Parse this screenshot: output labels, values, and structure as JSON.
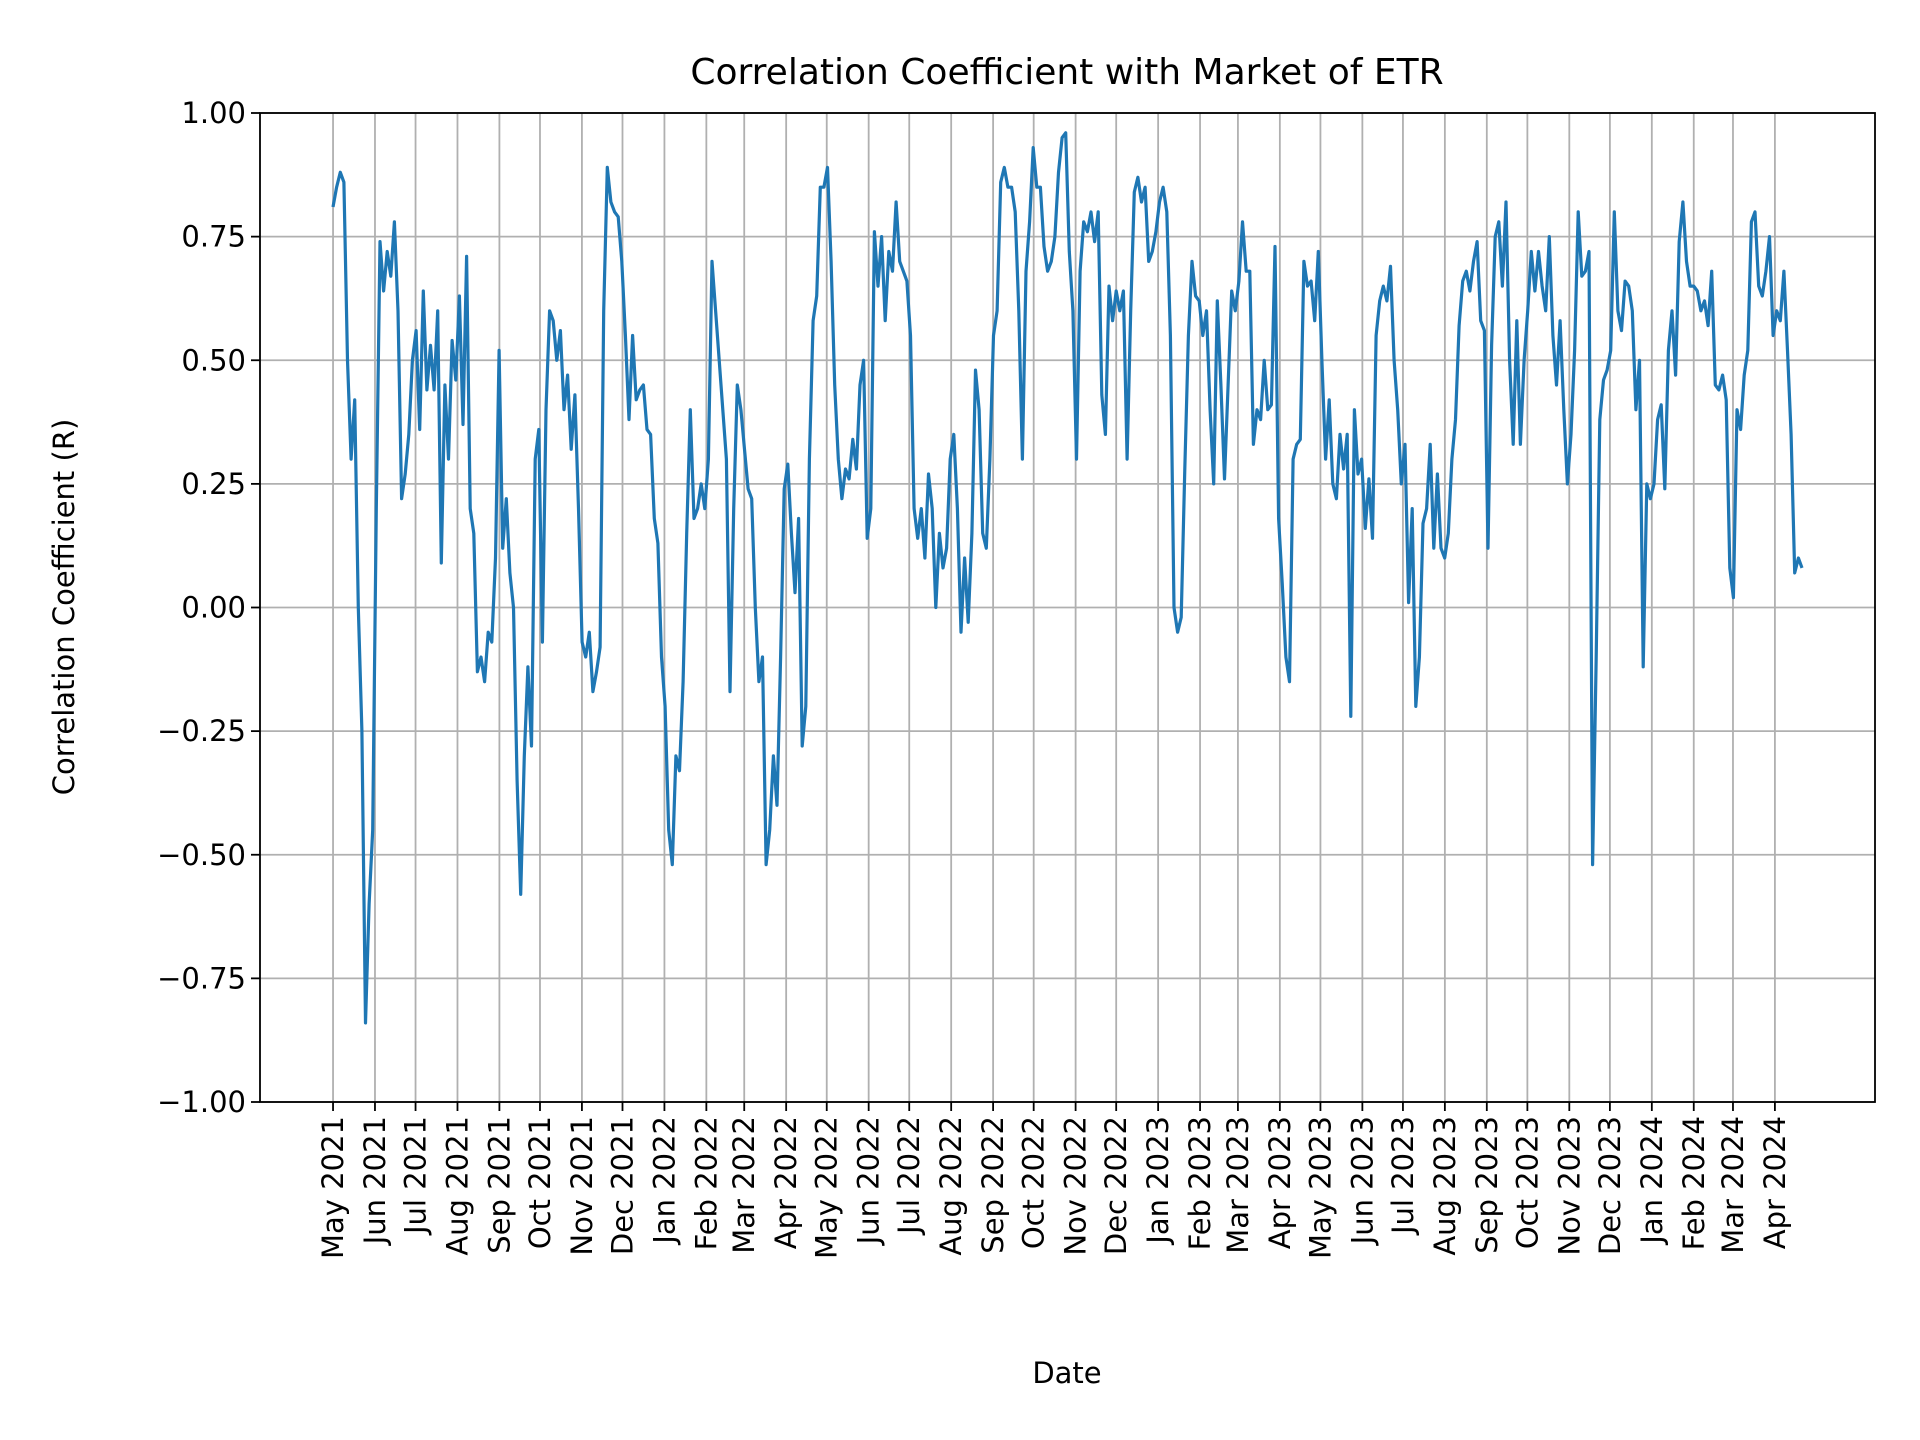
{
  "chart_data": {
    "type": "line",
    "title": "Correlation Coefficient with Market of ETR",
    "xlabel": "Date",
    "ylabel": "Correlation Coefficient (R)",
    "ylim": [
      -1.0,
      1.0
    ],
    "xlim": [
      "2021-03-08",
      "2024-06-14"
    ],
    "grid": true,
    "line_color": "#1f77b4",
    "grid_color": "#b0b0b0",
    "y_ticks": [
      {
        "value": 1.0,
        "label": "1.00"
      },
      {
        "value": 0.75,
        "label": "0.75"
      },
      {
        "value": 0.5,
        "label": "0.50"
      },
      {
        "value": 0.25,
        "label": "0.25"
      },
      {
        "value": 0.0,
        "label": "0.00"
      },
      {
        "value": -0.25,
        "label": "−0.25"
      },
      {
        "value": -0.5,
        "label": "−0.50"
      },
      {
        "value": -0.75,
        "label": "−0.75"
      },
      {
        "value": -1.0,
        "label": "−1.00"
      }
    ],
    "x_ticks": [
      {
        "date": "2021-05-01",
        "label": "May 2021"
      },
      {
        "date": "2021-06-01",
        "label": "Jun 2021"
      },
      {
        "date": "2021-07-01",
        "label": "Jul 2021"
      },
      {
        "date": "2021-08-01",
        "label": "Aug 2021"
      },
      {
        "date": "2021-09-01",
        "label": "Sep 2021"
      },
      {
        "date": "2021-10-01",
        "label": "Oct 2021"
      },
      {
        "date": "2021-11-01",
        "label": "Nov 2021"
      },
      {
        "date": "2021-12-01",
        "label": "Dec 2021"
      },
      {
        "date": "2022-01-01",
        "label": "Jan 2022"
      },
      {
        "date": "2022-02-01",
        "label": "Feb 2022"
      },
      {
        "date": "2022-03-01",
        "label": "Mar 2022"
      },
      {
        "date": "2022-04-01",
        "label": "Apr 2022"
      },
      {
        "date": "2022-05-01",
        "label": "May 2022"
      },
      {
        "date": "2022-06-01",
        "label": "Jun 2022"
      },
      {
        "date": "2022-07-01",
        "label": "Jul 2022"
      },
      {
        "date": "2022-08-01",
        "label": "Aug 2022"
      },
      {
        "date": "2022-09-01",
        "label": "Sep 2022"
      },
      {
        "date": "2022-10-01",
        "label": "Oct 2022"
      },
      {
        "date": "2022-11-01",
        "label": "Nov 2022"
      },
      {
        "date": "2022-12-01",
        "label": "Dec 2022"
      },
      {
        "date": "2023-01-01",
        "label": "Jan 2023"
      },
      {
        "date": "2023-02-01",
        "label": "Feb 2023"
      },
      {
        "date": "2023-03-01",
        "label": "Mar 2023"
      },
      {
        "date": "2023-04-01",
        "label": "Apr 2023"
      },
      {
        "date": "2023-05-01",
        "label": "May 2023"
      },
      {
        "date": "2023-06-01",
        "label": "Jun 2023"
      },
      {
        "date": "2023-07-01",
        "label": "Jul 2023"
      },
      {
        "date": "2023-08-01",
        "label": "Aug 2023"
      },
      {
        "date": "2023-09-01",
        "label": "Sep 2023"
      },
      {
        "date": "2023-10-01",
        "label": "Oct 2023"
      },
      {
        "date": "2023-11-01",
        "label": "Nov 2023"
      },
      {
        "date": "2023-12-01",
        "label": "Dec 2023"
      },
      {
        "date": "2024-01-01",
        "label": "Jan 2024"
      },
      {
        "date": "2024-02-01",
        "label": "Feb 2024"
      },
      {
        "date": "2024-03-01",
        "label": "Mar 2024"
      },
      {
        "date": "2024-04-01",
        "label": "Apr 2024"
      }
    ],
    "series": [
      {
        "first_date": "2021-05-01",
        "last_date": "2024-04-21",
        "values": [
          0.81,
          0.85,
          0.88,
          0.86,
          0.5,
          0.3,
          0.42,
          0.0,
          -0.25,
          -0.84,
          -0.6,
          -0.45,
          0.2,
          0.74,
          0.64,
          0.72,
          0.67,
          0.78,
          0.6,
          0.22,
          0.27,
          0.35,
          0.5,
          0.56,
          0.36,
          0.64,
          0.44,
          0.53,
          0.44,
          0.6,
          0.09,
          0.45,
          0.3,
          0.54,
          0.46,
          0.63,
          0.37,
          0.71,
          0.2,
          0.15,
          -0.13,
          -0.1,
          -0.15,
          -0.05,
          -0.07,
          0.1,
          0.52,
          0.12,
          0.22,
          0.07,
          0.0,
          -0.35,
          -0.58,
          -0.3,
          -0.12,
          -0.28,
          0.3,
          0.36,
          -0.07,
          0.4,
          0.6,
          0.58,
          0.5,
          0.56,
          0.4,
          0.47,
          0.32,
          0.43,
          0.2,
          -0.07,
          -0.1,
          -0.05,
          -0.17,
          -0.13,
          -0.08,
          0.6,
          0.89,
          0.82,
          0.8,
          0.79,
          0.7,
          0.55,
          0.38,
          0.55,
          0.42,
          0.44,
          0.45,
          0.36,
          0.35,
          0.18,
          0.13,
          -0.1,
          -0.2,
          -0.45,
          -0.52,
          -0.3,
          -0.33,
          -0.15,
          0.15,
          0.4,
          0.18,
          0.2,
          0.25,
          0.2,
          0.3,
          0.7,
          0.6,
          0.5,
          0.4,
          0.3,
          -0.17,
          0.2,
          0.45,
          0.4,
          0.32,
          0.24,
          0.22,
          0.0,
          -0.15,
          -0.1,
          -0.52,
          -0.45,
          -0.3,
          -0.4,
          -0.1,
          0.24,
          0.29,
          0.15,
          0.03,
          0.18,
          -0.28,
          -0.2,
          0.3,
          0.58,
          0.63,
          0.85,
          0.85,
          0.89,
          0.7,
          0.45,
          0.3,
          0.22,
          0.28,
          0.26,
          0.34,
          0.28,
          0.45,
          0.5,
          0.14,
          0.2,
          0.76,
          0.65,
          0.75,
          0.58,
          0.72,
          0.68,
          0.82,
          0.7,
          0.68,
          0.66,
          0.55,
          0.2,
          0.14,
          0.2,
          0.1,
          0.27,
          0.2,
          0.0,
          0.15,
          0.08,
          0.12,
          0.3,
          0.35,
          0.2,
          -0.05,
          0.1,
          -0.03,
          0.15,
          0.48,
          0.4,
          0.15,
          0.12,
          0.3,
          0.55,
          0.6,
          0.86,
          0.89,
          0.85,
          0.85,
          0.8,
          0.6,
          0.3,
          0.68,
          0.78,
          0.93,
          0.85,
          0.85,
          0.73,
          0.68,
          0.7,
          0.75,
          0.88,
          0.95,
          0.96,
          0.72,
          0.6,
          0.3,
          0.68,
          0.78,
          0.76,
          0.8,
          0.74,
          0.8,
          0.43,
          0.35,
          0.65,
          0.58,
          0.64,
          0.6,
          0.64,
          0.3,
          0.6,
          0.84,
          0.87,
          0.82,
          0.85,
          0.7,
          0.72,
          0.76,
          0.82,
          0.85,
          0.8,
          0.55,
          0.0,
          -0.05,
          -0.02,
          0.28,
          0.55,
          0.7,
          0.63,
          0.62,
          0.55,
          0.6,
          0.4,
          0.25,
          0.62,
          0.45,
          0.26,
          0.45,
          0.64,
          0.6,
          0.66,
          0.78,
          0.68,
          0.68,
          0.33,
          0.4,
          0.38,
          0.5,
          0.4,
          0.41,
          0.73,
          0.18,
          0.05,
          -0.1,
          -0.15,
          0.3,
          0.33,
          0.34,
          0.7,
          0.65,
          0.66,
          0.58,
          0.72,
          0.5,
          0.3,
          0.42,
          0.25,
          0.22,
          0.35,
          0.28,
          0.35,
          -0.22,
          0.4,
          0.27,
          0.3,
          0.16,
          0.26,
          0.14,
          0.55,
          0.62,
          0.65,
          0.62,
          0.69,
          0.5,
          0.4,
          0.25,
          0.33,
          0.01,
          0.2,
          -0.2,
          -0.1,
          0.17,
          0.2,
          0.33,
          0.12,
          0.27,
          0.12,
          0.1,
          0.15,
          0.3,
          0.38,
          0.57,
          0.66,
          0.68,
          0.64,
          0.7,
          0.74,
          0.58,
          0.56,
          0.12,
          0.53,
          0.75,
          0.78,
          0.65,
          0.82,
          0.5,
          0.33,
          0.58,
          0.33,
          0.5,
          0.6,
          0.72,
          0.64,
          0.72,
          0.65,
          0.6,
          0.75,
          0.55,
          0.45,
          0.58,
          0.4,
          0.25,
          0.35,
          0.52,
          0.8,
          0.67,
          0.68,
          0.72,
          -0.52,
          -0.1,
          0.38,
          0.46,
          0.48,
          0.52,
          0.8,
          0.6,
          0.56,
          0.66,
          0.65,
          0.6,
          0.4,
          0.5,
          -0.12,
          0.25,
          0.22,
          0.25,
          0.38,
          0.41,
          0.24,
          0.52,
          0.6,
          0.47,
          0.74,
          0.82,
          0.7,
          0.65,
          0.65,
          0.64,
          0.6,
          0.62,
          0.57,
          0.68,
          0.45,
          0.44,
          0.47,
          0.42,
          0.08,
          0.02,
          0.4,
          0.36,
          0.47,
          0.52,
          0.78,
          0.8,
          0.65,
          0.63,
          0.68,
          0.75,
          0.55,
          0.6,
          0.58,
          0.68,
          0.52,
          0.35,
          0.07,
          0.1,
          0.08
        ]
      }
    ]
  }
}
